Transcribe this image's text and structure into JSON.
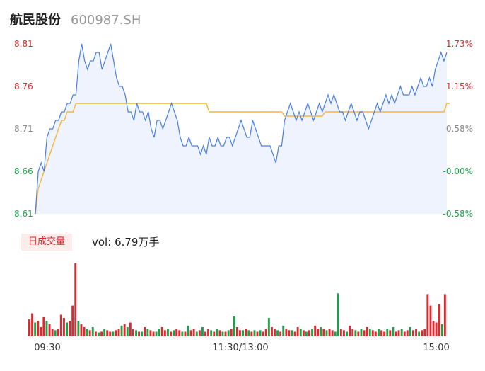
{
  "header": {
    "name": "航民股份",
    "code": "600987.SH"
  },
  "volume_panel": {
    "badge": "日成交量",
    "vol_prefix": "vol:",
    "vol_value": "6.79万手"
  },
  "colors": {
    "up": "#e0282e",
    "down": "#1aa34a",
    "neutral": "#888888",
    "price_line": "#4a7fe8",
    "avg_line": "#f5b63a",
    "area_fill": "#eef3fd"
  },
  "chart_data": {
    "type": "line",
    "title": "",
    "y_left_ticks": [
      "8.81",
      "8.76",
      "8.71",
      "8.66",
      "8.61"
    ],
    "y_right_ticks": [
      "1.73%",
      "1.15%",
      "0.58%",
      "-0.00%",
      "-0.58%"
    ],
    "x_ticks": [
      "09:30",
      "11:30/13:00",
      "15:00"
    ],
    "ylim": [
      8.61,
      8.81
    ],
    "series": [
      {
        "name": "price",
        "values": [
          8.61,
          8.66,
          8.67,
          8.66,
          8.7,
          8.71,
          8.71,
          8.72,
          8.72,
          8.73,
          8.73,
          8.74,
          8.74,
          8.75,
          8.75,
          8.79,
          8.81,
          8.79,
          8.78,
          8.79,
          8.79,
          8.8,
          8.8,
          8.78,
          8.79,
          8.8,
          8.81,
          8.79,
          8.77,
          8.76,
          8.76,
          8.75,
          8.73,
          8.73,
          8.72,
          8.74,
          8.73,
          8.73,
          8.72,
          8.73,
          8.71,
          8.7,
          8.72,
          8.72,
          8.71,
          8.72,
          8.73,
          8.74,
          8.73,
          8.72,
          8.7,
          8.69,
          8.69,
          8.7,
          8.69,
          8.69,
          8.69,
          8.68,
          8.69,
          8.68,
          8.7,
          8.69,
          8.69,
          8.7,
          8.69,
          8.69,
          8.7,
          8.7,
          8.69,
          8.7,
          8.71,
          8.72,
          8.71,
          8.7,
          8.7,
          8.72,
          8.71,
          8.7,
          8.69,
          8.69,
          8.69,
          8.69,
          8.68,
          8.67,
          8.69,
          8.69,
          8.72,
          8.73,
          8.74,
          8.73,
          8.72,
          8.73,
          8.72,
          8.73,
          8.74,
          8.73,
          8.72,
          8.73,
          8.74,
          8.73,
          8.74,
          8.75,
          8.74,
          8.75,
          8.74,
          8.73,
          8.73,
          8.72,
          8.73,
          8.74,
          8.73,
          8.72,
          8.73,
          8.73,
          8.72,
          8.71,
          8.72,
          8.73,
          8.74,
          8.73,
          8.74,
          8.75,
          8.74,
          8.75,
          8.74,
          8.75,
          8.76,
          8.75,
          8.75,
          8.75,
          8.76,
          8.75,
          8.76,
          8.77,
          8.76,
          8.76,
          8.77,
          8.76,
          8.78,
          8.79,
          8.8,
          8.79,
          8.8
        ]
      },
      {
        "name": "avg",
        "values": [
          8.61,
          8.64,
          8.65,
          8.66,
          8.67,
          8.68,
          8.69,
          8.7,
          8.71,
          8.72,
          8.72,
          8.73,
          8.73,
          8.73,
          8.74,
          8.74,
          8.74,
          8.74,
          8.74,
          8.74,
          8.74,
          8.74,
          8.74,
          8.74,
          8.74,
          8.74,
          8.74,
          8.74,
          8.74,
          8.74,
          8.74,
          8.74,
          8.74,
          8.74,
          8.74,
          8.74,
          8.74,
          8.74,
          8.74,
          8.74,
          8.74,
          8.74,
          8.74,
          8.74,
          8.74,
          8.74,
          8.74,
          8.74,
          8.74,
          8.74,
          8.74,
          8.74,
          8.74,
          8.74,
          8.74,
          8.74,
          8.74,
          8.74,
          8.74,
          8.74,
          8.73,
          8.73,
          8.73,
          8.73,
          8.73,
          8.73,
          8.73,
          8.73,
          8.73,
          8.73,
          8.73,
          8.73,
          8.73,
          8.73,
          8.73,
          8.73,
          8.73,
          8.73,
          8.73,
          8.73,
          8.73,
          8.73,
          8.73,
          8.73,
          8.73,
          8.73,
          8.725,
          8.725,
          8.725,
          8.725,
          8.725,
          8.725,
          8.725,
          8.725,
          8.725,
          8.725,
          8.725,
          8.725,
          8.725,
          8.725,
          8.73,
          8.73,
          8.73,
          8.73,
          8.73,
          8.73,
          8.73,
          8.73,
          8.73,
          8.73,
          8.73,
          8.73,
          8.73,
          8.73,
          8.73,
          8.73,
          8.73,
          8.73,
          8.73,
          8.73,
          8.73,
          8.73,
          8.73,
          8.73,
          8.73,
          8.73,
          8.73,
          8.73,
          8.73,
          8.73,
          8.73,
          8.73,
          8.73,
          8.73,
          8.73,
          8.73,
          8.73,
          8.73,
          8.73,
          8.73,
          8.73,
          8.73,
          8.74,
          8.74
        ]
      }
    ],
    "volume": [
      22,
      30,
      18,
      20,
      12,
      25,
      20,
      16,
      10,
      8,
      10,
      28,
      24,
      18,
      20,
      40,
      95,
      20,
      16,
      12,
      10,
      8,
      12,
      6,
      5,
      6,
      10,
      8,
      6,
      6,
      8,
      10,
      14,
      16,
      12,
      18,
      10,
      8,
      6,
      6,
      12,
      10,
      8,
      6,
      6,
      10,
      12,
      8,
      10,
      6,
      8,
      10,
      8,
      6,
      6,
      14,
      8,
      10,
      6,
      8,
      12,
      6,
      10,
      8,
      6,
      10,
      8,
      6,
      6,
      8,
      10,
      26,
      12,
      8,
      8,
      10,
      8,
      6,
      8,
      6,
      8,
      6,
      10,
      24,
      12,
      10,
      8,
      6,
      14,
      10,
      8,
      8,
      6,
      12,
      10,
      8,
      6,
      8,
      10,
      14,
      10,
      12,
      10,
      8,
      10,
      8,
      6,
      56,
      10,
      8,
      6,
      14,
      10,
      8,
      6,
      10,
      8,
      12,
      10,
      8,
      6,
      10,
      8,
      6,
      10,
      8,
      12,
      6,
      8,
      10,
      6,
      8,
      12,
      8,
      10,
      6,
      8,
      10,
      55,
      40,
      20,
      18,
      42,
      16,
      55
    ],
    "volume_colors": [
      "up",
      "up",
      "down",
      "up",
      "up",
      "up",
      "down",
      "up",
      "up",
      "down",
      "up",
      "up",
      "up",
      "down",
      "up",
      "up",
      "up",
      "down",
      "up",
      "up",
      "down",
      "up",
      "down",
      "up",
      "down",
      "up",
      "down",
      "up",
      "up",
      "down",
      "up",
      "up",
      "down",
      "up",
      "down",
      "up",
      "up",
      "down",
      "up",
      "down",
      "up",
      "down",
      "up",
      "up",
      "down",
      "down",
      "up",
      "up",
      "down",
      "up",
      "down",
      "up",
      "up",
      "down",
      "up",
      "down",
      "up",
      "up",
      "down",
      "up",
      "down",
      "up",
      "up",
      "down",
      "up",
      "down",
      "up",
      "down",
      "up",
      "down",
      "up",
      "down",
      "up",
      "up",
      "down",
      "up",
      "down",
      "up",
      "down",
      "up",
      "down",
      "up",
      "up",
      "down",
      "up",
      "up",
      "down",
      "up",
      "down",
      "up",
      "up",
      "down",
      "up",
      "up",
      "down",
      "up",
      "down",
      "up",
      "down",
      "up",
      "up",
      "down",
      "up",
      "down",
      "up",
      "up",
      "down",
      "down",
      "up",
      "up",
      "down",
      "up",
      "up",
      "down",
      "up",
      "down",
      "up",
      "up",
      "down",
      "up",
      "up",
      "down",
      "up",
      "up",
      "down",
      "up",
      "down",
      "up",
      "up",
      "down",
      "up",
      "up",
      "down",
      "up",
      "up",
      "down",
      "up",
      "up",
      "up",
      "up",
      "up",
      "up",
      "up",
      "down"
    ]
  }
}
